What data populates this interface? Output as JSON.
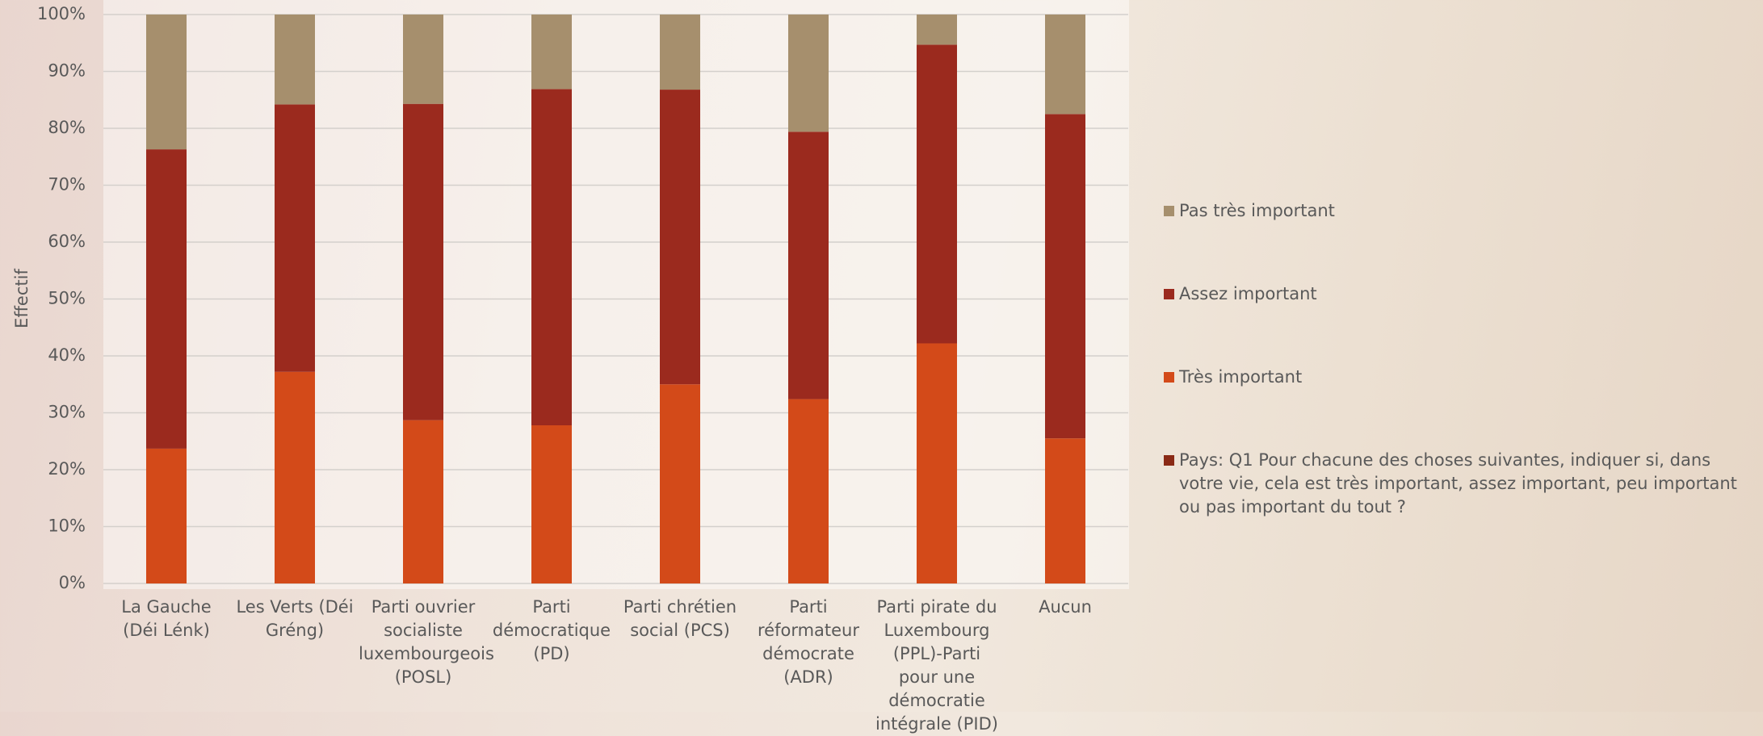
{
  "chart_data": {
    "type": "stacked_bar",
    "y_label": "Effectif",
    "categories": [
      "La Gauche (Déi Lénk)",
      "Les Verts (Déi Gréng)",
      "Parti ouvrier socialiste luxembourgeois (POSL)",
      "Parti démocratique (PD)",
      "Parti chrétien social (PCS)",
      "Parti réformateur démocrate (ADR)",
      "Parti pirate du Luxembourg (PPL)-Parti pour une démocratie intégrale (PID)",
      "Aucun"
    ],
    "series": [
      {
        "name": "Pas très important",
        "color": "#a68f6d",
        "values": [
          23.7,
          15.8,
          15.7,
          13.1,
          13.2,
          20.6,
          5.3,
          17.5
        ]
      },
      {
        "name": "Assez important",
        "color": "#9b2a1e",
        "values": [
          52.6,
          47.0,
          55.6,
          59.1,
          51.8,
          47.0,
          52.5,
          57.0
        ]
      },
      {
        "name": "Très important",
        "color": "#d34a19",
        "values": [
          23.7,
          37.2,
          28.7,
          27.8,
          35.0,
          32.4,
          42.2,
          25.5
        ]
      },
      {
        "name": "Pays: Q1 Pour chacune des choses suivantes, indiquer si, dans votre vie, cela est très important, assez important, peu important ou pas important du tout ?",
        "color": "#8a2a15",
        "values": [
          null,
          null,
          null,
          null,
          null,
          null,
          null,
          null
        ]
      }
    ],
    "ylim": [
      0,
      100
    ],
    "yticks": [
      {
        "value": 0,
        "label": "0%"
      },
      {
        "value": 10,
        "label": "10%"
      },
      {
        "value": 20,
        "label": "20%"
      },
      {
        "value": 30,
        "label": "30%"
      },
      {
        "value": 40,
        "label": "40%"
      },
      {
        "value": 50,
        "label": "50%"
      },
      {
        "value": 60,
        "label": "60%"
      },
      {
        "value": 70,
        "label": "70%"
      },
      {
        "value": 80,
        "label": "80%"
      },
      {
        "value": 90,
        "label": "90%"
      },
      {
        "value": 100,
        "label": "100%"
      }
    ],
    "grid": true
  }
}
